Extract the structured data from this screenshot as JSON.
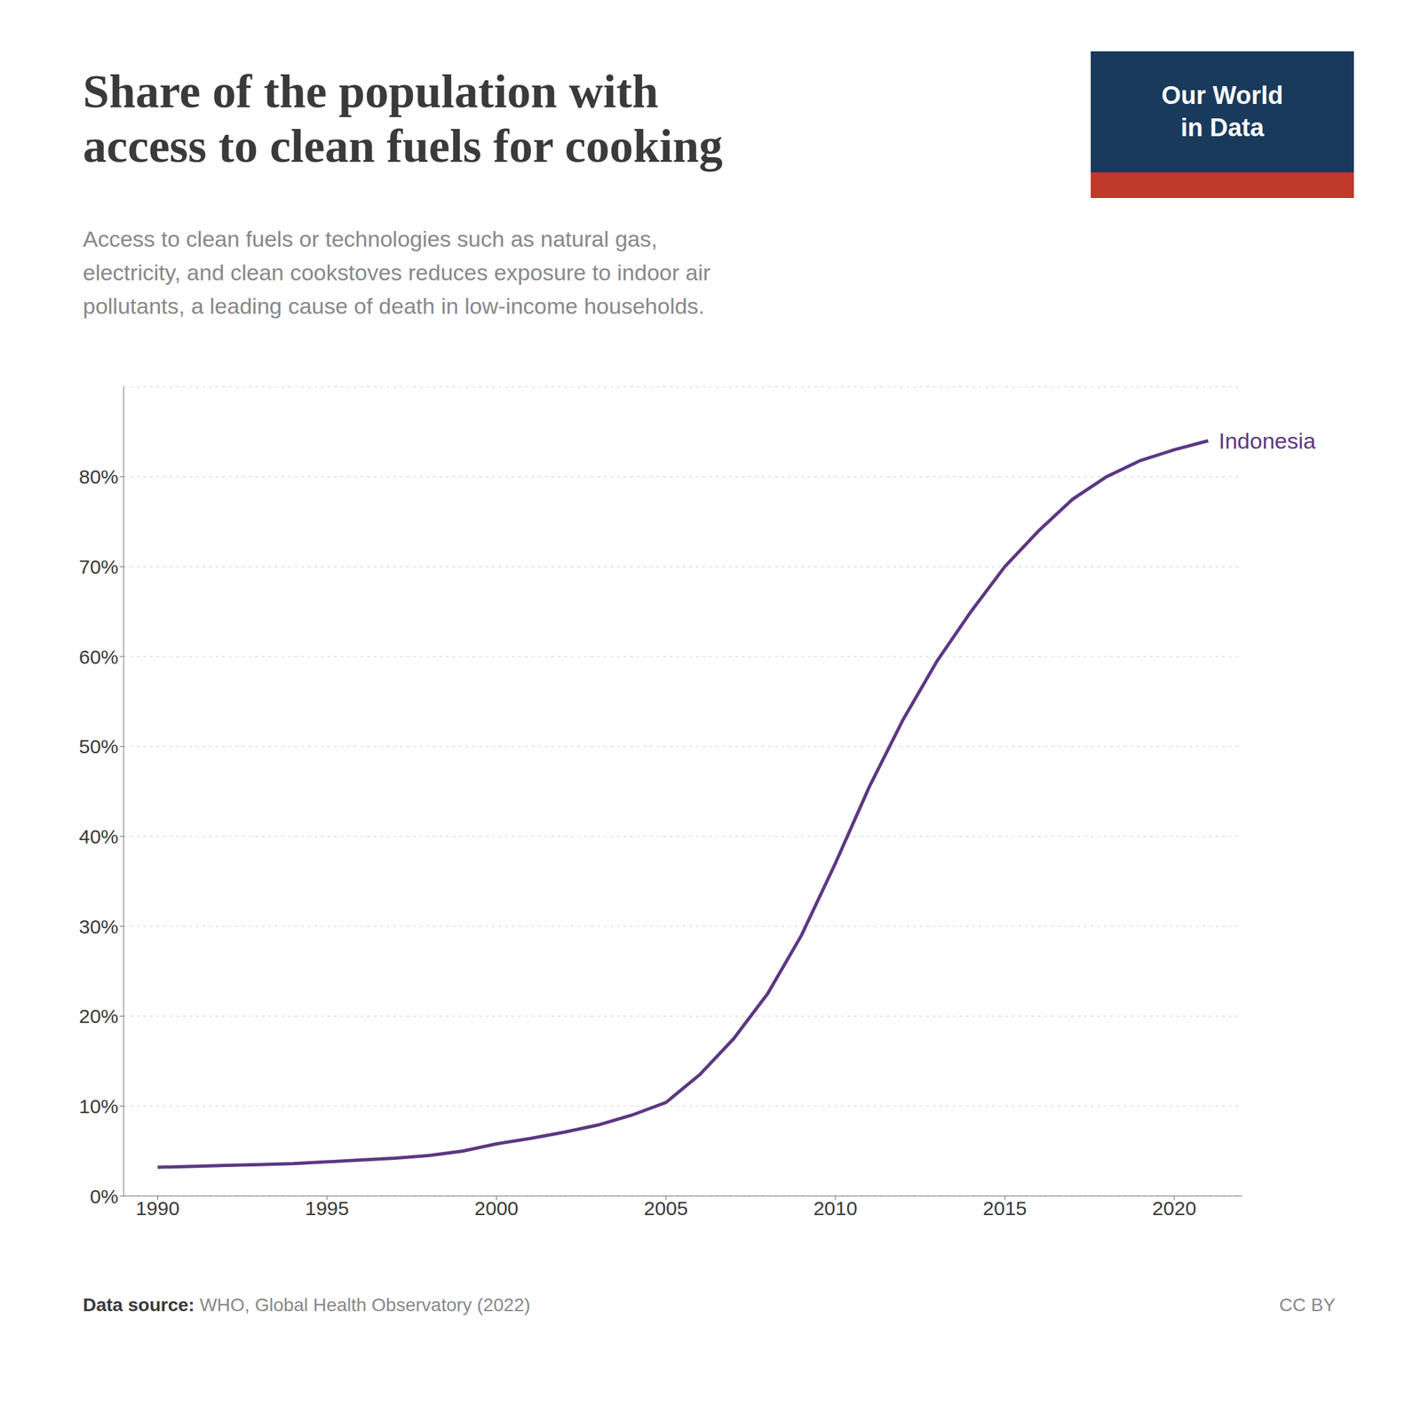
{
  "chart_data": {
    "type": "line",
    "title": "Share of the population with\naccess to clean fuels for cooking",
    "subtitle": "Access to clean fuels or technologies such as natural gas,\nelectricity, and clean cookstoves reduces exposure to indoor air\npollutants, a leading cause of death in low-income households.",
    "x": [
      1990,
      1991,
      1992,
      1993,
      1994,
      1995,
      1996,
      1997,
      1998,
      1999,
      2000,
      2001,
      2002,
      2003,
      2004,
      2005,
      2006,
      2007,
      2008,
      2009,
      2010,
      2011,
      2012,
      2013,
      2014,
      2015,
      2016,
      2017,
      2018,
      2019,
      2020,
      2021
    ],
    "series": [
      {
        "name": "Indonesia",
        "color": "#5c3882",
        "values": [
          3.2,
          3.3,
          3.4,
          3.5,
          3.6,
          3.8,
          4.0,
          4.2,
          4.5,
          5.0,
          5.8,
          6.4,
          7.1,
          7.9,
          9.0,
          10.4,
          13.5,
          17.5,
          22.5,
          29.0,
          37.0,
          45.5,
          53.0,
          59.5,
          65.0,
          70.0,
          74.0,
          77.5,
          80.0,
          81.8,
          83.0,
          84.0
        ]
      }
    ],
    "xlim": [
      1989,
      2022
    ],
    "xticks": [
      1990,
      1995,
      2000,
      2005,
      2010,
      2015,
      2020
    ],
    "ylim": [
      0,
      90
    ],
    "yticks": [
      {
        "value": 0,
        "label": "0%"
      },
      {
        "value": 10,
        "label": "10%"
      },
      {
        "value": 20,
        "label": "20%"
      },
      {
        "value": 30,
        "label": "30%"
      },
      {
        "value": 40,
        "label": "40%"
      },
      {
        "value": 50,
        "label": "50%"
      },
      {
        "value": 60,
        "label": "60%"
      },
      {
        "value": 70,
        "label": "70%"
      },
      {
        "value": 80,
        "label": "80%"
      }
    ],
    "grid": true,
    "annotations": [
      "Our World\nin Data",
      "Data source: WHO, Global Health Observatory (2022)",
      "CC BY"
    ]
  }
}
